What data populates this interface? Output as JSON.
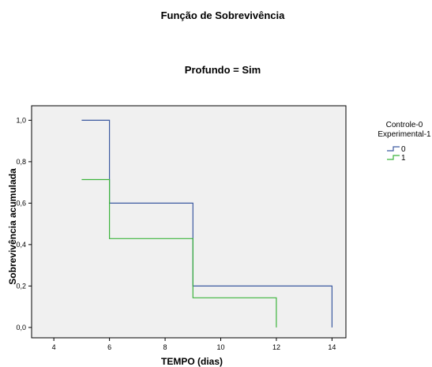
{
  "chart_data": {
    "type": "line",
    "step": true,
    "title": "Função de Sobrevivência",
    "subtitle": "Profundo = Sim",
    "xlabel": "TEMPO (dias)",
    "ylabel": "Sobrevivência acumulada",
    "xlim": [
      3.2,
      14.5
    ],
    "ylim": [
      -0.05,
      1.07
    ],
    "x_ticks": [
      4,
      6,
      8,
      10,
      12,
      14
    ],
    "x_tick_labels": [
      "4",
      "6",
      "8",
      "10",
      "12",
      "14"
    ],
    "y_ticks": [
      0.0,
      0.2,
      0.4,
      0.6,
      0.8,
      1.0
    ],
    "y_tick_labels": [
      "0,0",
      "0,2",
      "0,4",
      "0,6",
      "0,8",
      "1,0"
    ],
    "grid": false,
    "plot_background": "#f0f0f0",
    "legend": {
      "title_lines": [
        "Controle-0",
        "Experimental-1"
      ],
      "placement": "right"
    },
    "series": [
      {
        "name": "0",
        "color": "#3c5aa0",
        "x": [
          5,
          6,
          6,
          9,
          9,
          14,
          14
        ],
        "y": [
          1.0,
          1.0,
          0.6,
          0.6,
          0.2,
          0.2,
          0.0
        ]
      },
      {
        "name": "1",
        "color": "#3cb43c",
        "x": [
          5,
          6,
          6,
          9,
          9,
          12,
          12
        ],
        "y": [
          0.714,
          0.714,
          0.429,
          0.429,
          0.143,
          0.143,
          0.0
        ]
      }
    ]
  }
}
